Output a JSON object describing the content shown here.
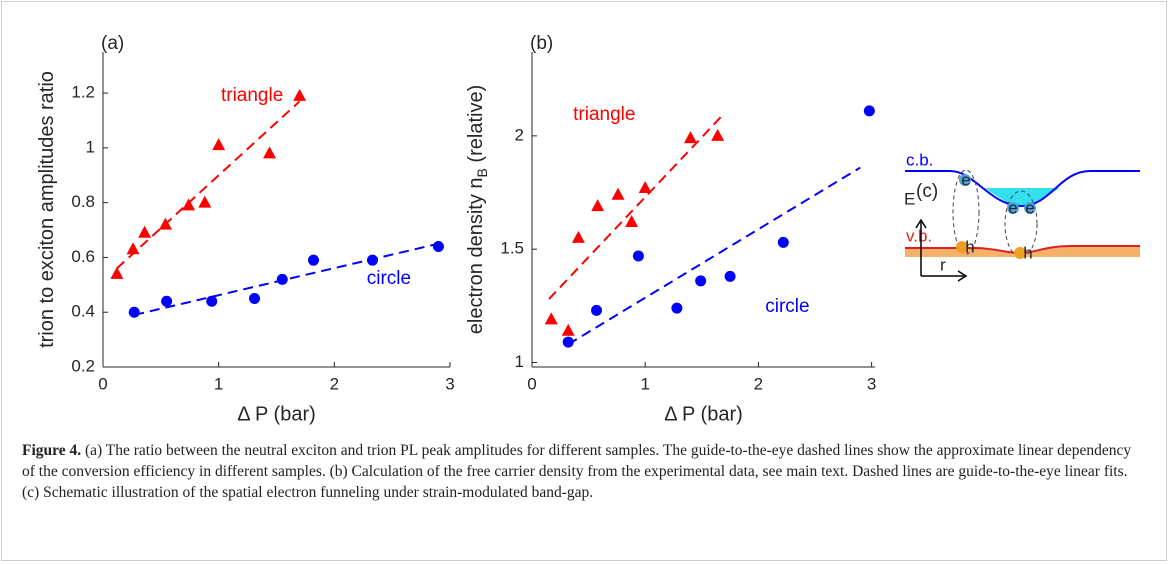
{
  "chart_data": [
    {
      "type": "scatter",
      "panel_label": "(a)",
      "xlabel": "Δ P (bar)",
      "ylabel": {
        "text": "trion to exciton amplitudes ratio"
      },
      "xlim": [
        0,
        3
      ],
      "ylim": [
        0.2,
        1.35
      ],
      "xticks": [
        0,
        1,
        2,
        3
      ],
      "yticks": [
        0.2,
        0.4,
        0.6,
        0.8,
        1,
        1.2
      ],
      "series": [
        {
          "name": "triangle",
          "color": "#ff0000",
          "marker": "triangle",
          "x": [
            0.12,
            0.26,
            0.36,
            0.54,
            0.74,
            0.88,
            1.0,
            1.44,
            1.7
          ],
          "values": [
            0.54,
            0.63,
            0.69,
            0.72,
            0.79,
            0.8,
            1.01,
            0.98,
            1.19
          ]
        },
        {
          "name": "circle",
          "color": "#0000ff",
          "marker": "circle",
          "x": [
            0.27,
            0.55,
            0.94,
            1.31,
            1.55,
            1.82,
            2.33,
            2.9
          ],
          "values": [
            0.4,
            0.44,
            0.44,
            0.45,
            0.52,
            0.59,
            0.59,
            0.64
          ]
        }
      ],
      "fits": [
        {
          "color": "#ff0000",
          "x": [
            0.12,
            1.7
          ],
          "values": [
            0.56,
            1.17
          ]
        },
        {
          "color": "#0000ff",
          "x": [
            0.27,
            2.9
          ],
          "values": [
            0.39,
            0.65
          ]
        }
      ]
    },
    {
      "type": "scatter",
      "panel_label": "(b)",
      "xlabel": "Δ P (bar)",
      "ylabel": {
        "text": "electron density n",
        "sub": "B",
        "after": " (relative)"
      },
      "xlim": [
        0,
        3.03
      ],
      "ylim": [
        0.98,
        2.37
      ],
      "xticks": [
        0,
        1,
        2,
        3
      ],
      "yticks": [
        1,
        1.5,
        2
      ],
      "series": [
        {
          "name": "triangle",
          "color": "#ff0000",
          "marker": "triangle",
          "x": [
            0.17,
            0.32,
            0.41,
            0.58,
            0.76,
            0.88,
            1.0,
            1.4,
            1.64
          ],
          "values": [
            1.19,
            1.14,
            1.55,
            1.69,
            1.74,
            1.62,
            1.77,
            1.99,
            2.0
          ]
        },
        {
          "name": "circle",
          "color": "#0000ff",
          "marker": "circle",
          "x": [
            0.32,
            0.57,
            0.94,
            1.28,
            1.49,
            1.75,
            2.22,
            2.98
          ],
          "values": [
            1.09,
            1.23,
            1.47,
            1.24,
            1.36,
            1.38,
            1.53,
            2.11
          ]
        }
      ],
      "fits": [
        {
          "color": "#ff0000",
          "x": [
            0.15,
            1.7
          ],
          "values": [
            1.28,
            2.1
          ]
        },
        {
          "color": "#0000ff",
          "x": [
            0.32,
            2.9
          ],
          "values": [
            1.08,
            1.86
          ]
        }
      ]
    }
  ],
  "diagram": {
    "panel_label": "(c)",
    "cb_label": "c.b.",
    "vb_label": "v.b.",
    "energy_label": "E",
    "r_label": "r",
    "electron_labels": [
      "e",
      "e",
      "e"
    ],
    "hole_labels": [
      "h",
      "h"
    ]
  },
  "caption": {
    "label": "Figure 4.",
    "text": "(a) The ratio between the neutral exciton and trion PL peak amplitudes for different samples. The guide-to-the-eye dashed lines show the approximate linear dependency of the conversion efficiency in different samples. (b) Calculation of the free carrier density from the experimental data, see main text. Dashed lines are guide-to-the-eye linear fits. (c) Schematic illustration of the spatial electron funneling under strain-modulated band-gap."
  }
}
